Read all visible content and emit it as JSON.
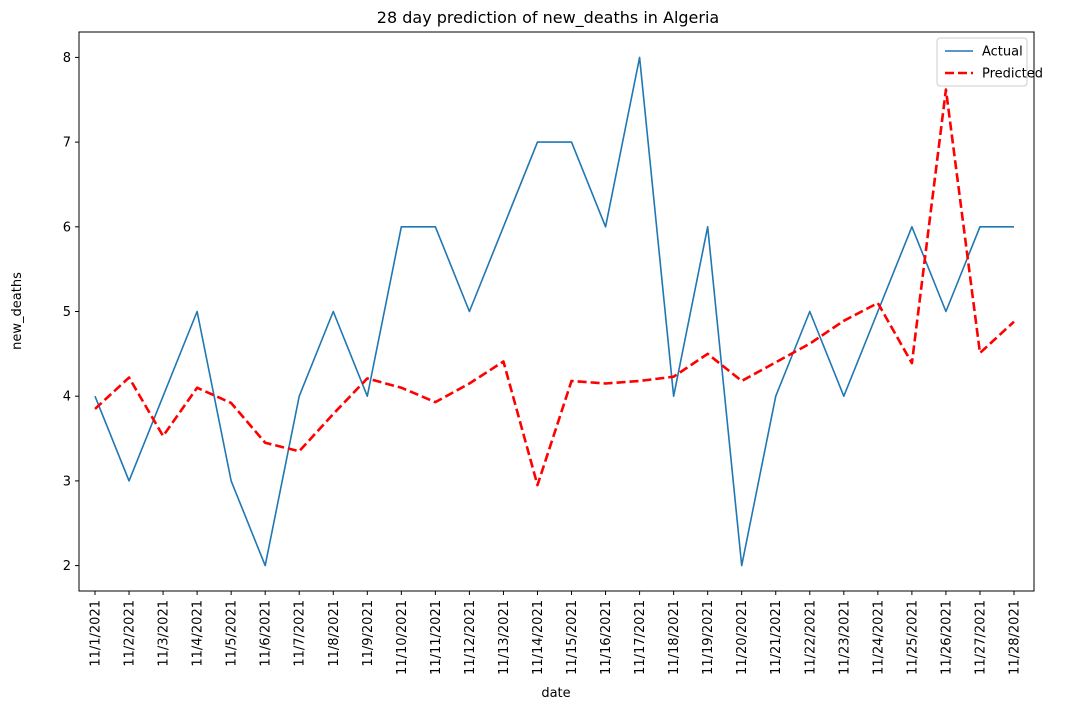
{
  "chart_data": {
    "type": "line",
    "title": "28 day prediction of new_deaths in Algeria",
    "xlabel": "date",
    "ylabel": "new_deaths",
    "categories": [
      "11/1/2021",
      "11/2/2021",
      "11/3/2021",
      "11/4/2021",
      "11/5/2021",
      "11/6/2021",
      "11/7/2021",
      "11/8/2021",
      "11/9/2021",
      "11/10/2021",
      "11/11/2021",
      "11/12/2021",
      "11/13/2021",
      "11/14/2021",
      "11/15/2021",
      "11/16/2021",
      "11/17/2021",
      "11/18/2021",
      "11/19/2021",
      "11/20/2021",
      "11/21/2021",
      "11/22/2021",
      "11/23/2021",
      "11/24/2021",
      "11/25/2021",
      "11/26/2021",
      "11/27/2021",
      "11/28/2021"
    ],
    "y_ticks": [
      2,
      3,
      4,
      5,
      6,
      7,
      8
    ],
    "ylim": [
      1.7,
      8.3
    ],
    "grid": false,
    "legend_position": "top-right",
    "series": [
      {
        "name": "Actual",
        "color": "#1f77b4",
        "style": "solid",
        "values": [
          4,
          3,
          4,
          5,
          3,
          2,
          4,
          5,
          4,
          6,
          6,
          5,
          6,
          7,
          7,
          6,
          8,
          4,
          6,
          2,
          4,
          5,
          4,
          5,
          6,
          5,
          6,
          6
        ]
      },
      {
        "name": "Predicted",
        "color": "#ff0000",
        "style": "dashed",
        "values": [
          3.85,
          4.22,
          3.53,
          4.1,
          3.92,
          3.45,
          3.35,
          3.79,
          4.21,
          4.1,
          3.93,
          4.15,
          4.41,
          2.95,
          4.18,
          4.15,
          4.18,
          4.23,
          4.5,
          4.18,
          4.4,
          4.62,
          4.89,
          5.1,
          4.39,
          7.62,
          4.51,
          4.88
        ]
      }
    ]
  }
}
